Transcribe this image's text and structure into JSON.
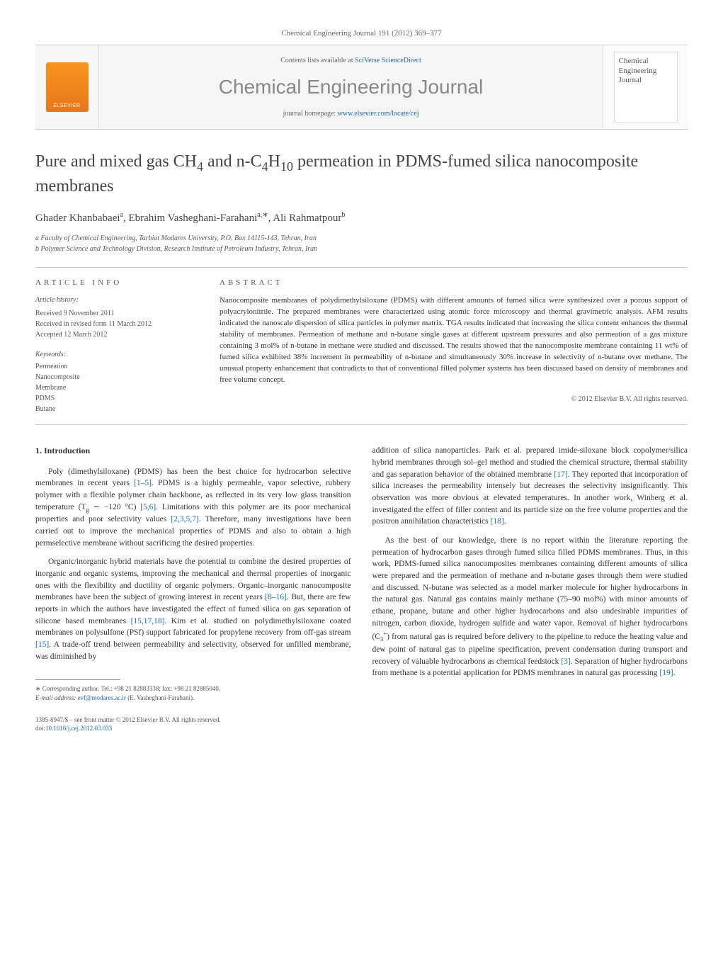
{
  "header": {
    "citation": "Chemical Engineering Journal 191 (2012) 369–377"
  },
  "masthead": {
    "publisher_logo_text": "ELSEVIER",
    "contents_prefix": "Contents lists available at ",
    "contents_link": "SciVerse ScienceDirect",
    "journal_name": "Chemical Engineering Journal",
    "homepage_prefix": "journal homepage: ",
    "homepage_link": "www.elsevier.com/locate/cej",
    "cover_title": "Chemical Engineering Journal"
  },
  "article": {
    "title_html": "Pure and mixed gas CH<sub>4</sub> and n-C<sub>4</sub>H<sub>10</sub> permeation in PDMS-fumed silica nanocomposite membranes",
    "authors_html": "Ghader Khanbabaei<sup>a</sup>, Ebrahim Vasheghani-Farahani<sup>a,∗</sup>, Ali Rahmatpour<sup>b</sup>",
    "affiliations": [
      "a Faculty of Chemical Engineering, Tarbiat Modares University, P.O. Box 14115-143, Tehran, Iran",
      "b Polymer Science and Technology Division, Research Institute of Petroleum Industry, Tehran, Iran"
    ]
  },
  "info": {
    "label": "ARTICLE INFO",
    "history_label": "Article history:",
    "history": [
      "Received 9 November 2011",
      "Received in revised form 11 March 2012",
      "Accepted 12 March 2012"
    ],
    "keywords_label": "Keywords:",
    "keywords": [
      "Permeation",
      "Nanocomposite",
      "Membrane",
      "PDMS",
      "Butane"
    ]
  },
  "abstract": {
    "label": "ABSTRACT",
    "text": "Nanocomposite membranes of polydimethylsiloxane (PDMS) with different amounts of fumed silica were synthesized over a porous support of polyacrylonitrile. The prepared membranes were characterized using atomic force microscopy and thermal gravimetric analysis. AFM results indicated the nanoscale dispersion of silica particles in polymer matrix. TGA results indicated that increasing the silica content enhances the thermal stability of membranes. Permeation of methane and n-butane single gases at different upstream pressures and also permeation of a gas mixture containing 3 mol% of n-butane in methane were studied and discussed. The results showed that the nanocomposite membrane containing 11 wt% of fumed silica exhibited 38% increment in permeability of n-butane and simultaneously 30% increase in selectivity of n-butane over methane. The unusual property enhancement that contradicts to that of conventional filled polymer systems has been discussed based on density of membranes and free volume concept.",
    "copyright": "© 2012 Elsevier B.V. All rights reserved."
  },
  "body": {
    "section_heading": "1. Introduction",
    "col1": {
      "p1_html": "Poly (dimethylsiloxane) (PDMS) has been the best choice for hydrocarbon selective membranes in recent years <a class='ref-link' data-name='citation-link' data-interactable='true'>[1–5]</a>. PDMS is a highly permeable, vapor selective, rubbery polymer with a flexible polymer chain backbone, as reflected in its very low glass transition temperature (T<sub>g</sub> ∼ −120 °C) <a class='ref-link' data-name='citation-link' data-interactable='true'>[5,6]</a>. Limitations with this polymer are its poor mechanical properties and poor selectivity values <a class='ref-link' data-name='citation-link' data-interactable='true'>[2,3,5,7]</a>. Therefore, many investigations have been carried out to improve the mechanical properties of PDMS and also to obtain a high permselective membrane without sacrificing the desired properties.",
      "p2_html": "Organic/inorganic hybrid materials have the potential to combine the desired properties of inorganic and organic systems, improving the mechanical and thermal properties of inorganic ones with the flexibility and ductility of organic polymers. Organic–inorganic nanocomposite membranes have been the subject of growing interest in recent years <a class='ref-link' data-name='citation-link' data-interactable='true'>[8–16]</a>. But, there are few reports in which the authors have investigated the effect of fumed silica on gas separation of silicone based membranes <a class='ref-link' data-name='citation-link' data-interactable='true'>[15,17,18]</a>. Kim et al. studied on polydimethylsiloxane coated membranes on polysulfone (PSf) support fabricated for propylene recovery from off-gas stream <a class='ref-link' data-name='citation-link' data-interactable='true'>[15]</a>. A trade-off trend between permeability and selectivity, observed for unfilled membrane, was diminished by"
    },
    "col2": {
      "p1_html": "addition of silica nanoparticles. Park et al. prepared imide-siloxane block copolymer/silica hybrid membranes through sol–gel method and studied the chemical structure, thermal stability and gas separation behavior of the obtained membrane <a class='ref-link' data-name='citation-link' data-interactable='true'>[17]</a>. They reported that incorporation of silica increases the permeability intensely but decreases the selectivity insignificantly. This observation was more obvious at elevated temperatures. In another work, Winberg et al. investigated the effect of filler content and its particle size on the free volume properties and the positron annihilation characteristics <a class='ref-link' data-name='citation-link' data-interactable='true'>[18]</a>.",
      "p2_html": "As the best of our knowledge, there is no report within the literature reporting the permeation of hydrocarbon gases through fumed silica filled PDMS membranes. Thus, in this work, PDMS-fumed silica nanocomposites membranes containing different amounts of silica were prepared and the permeation of methane and n-butane gases through them were studied and discussed. N-butane was selected as a model marker molecule for higher hydrocarbons in the natural gas. Natural gas contains mainly methane (75–90 mol%) with minor amounts of ethane, propane, butane and other higher hydrocarbons and also undesirable impurities of nitrogen, carbon dioxide, hydrogen sulfide and water vapor. Removal of higher hydrocarbons (C<sub>3</sub><sup>+</sup>) from natural gas is required before delivery to the pipeline to reduce the heating value and dew point of natural gas to pipeline specification, prevent condensation during transport and recovery of valuable hydrocarbons as chemical feedstock <a class='ref-link' data-name='citation-link' data-interactable='true'>[3]</a>. Separation of higher hydrocarbons from methane is a potential application for PDMS membranes in natural gas processing <a class='ref-link' data-name='citation-link' data-interactable='true'>[19]</a>."
    }
  },
  "footnote": {
    "corresponding": "∗ Corresponding author. Tel.: +98 21 82883338; fax: +98 21 82885040.",
    "email_label": "E-mail address: ",
    "email": "evf@modares.ac.ir",
    "email_suffix": " (E. Vasheghani-Farahani)."
  },
  "footer": {
    "line1": "1385-8947/$ – see front matter © 2012 Elsevier B.V. All rights reserved.",
    "doi_prefix": "doi:",
    "doi": "10.1016/j.cej.2012.03.033"
  },
  "colors": {
    "link": "#1a6bb3",
    "text": "#333333",
    "muted": "#666666",
    "border": "#cccccc",
    "elsevier_orange": "#f7941e"
  }
}
